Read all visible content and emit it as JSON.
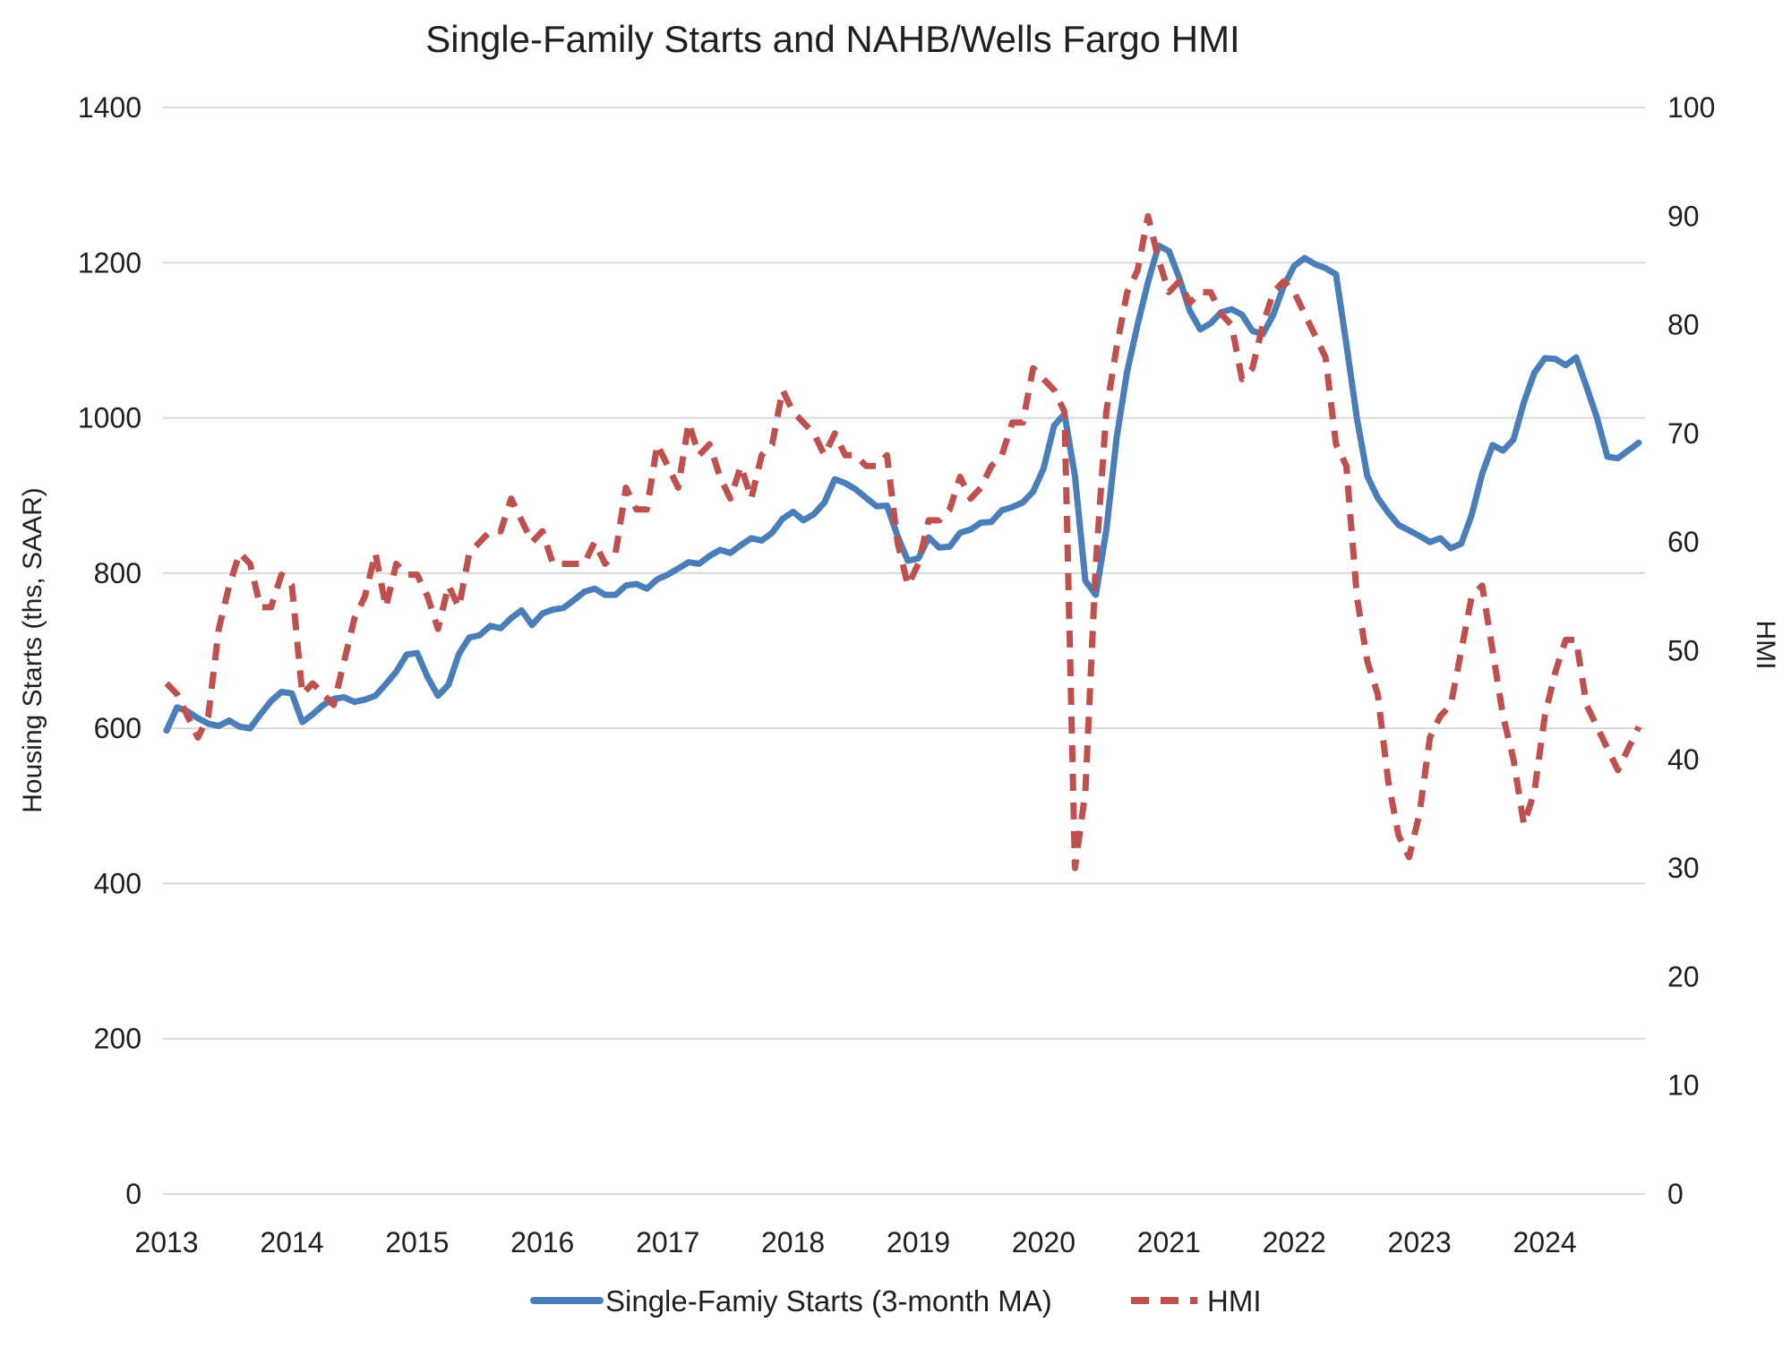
{
  "title": "Single-Family Starts and NAHB/Wells Fargo HMI",
  "left_axis": {
    "title": "Housing Starts (ths, SAAR)",
    "ticks": [
      "1400",
      "1200",
      "1000",
      "800",
      "600",
      "400",
      "200",
      "0"
    ],
    "min": 0,
    "max": 1400
  },
  "right_axis": {
    "title": "HMI",
    "ticks": [
      "100",
      "90",
      "80",
      "70",
      "60",
      "50",
      "40",
      "30",
      "20",
      "10",
      "0"
    ],
    "min": 0,
    "max": 100
  },
  "x_axis": {
    "year_labels": [
      "2013",
      "2014",
      "2015",
      "2016",
      "2017",
      "2018",
      "2019",
      "2020",
      "2021",
      "2022",
      "2023",
      "2024"
    ]
  },
  "legend": {
    "starts_label": "Single-Famiy Starts (3-month MA)",
    "hmi_label": "HMI"
  },
  "colors": {
    "starts_line": "#4a7eba",
    "hmi_line": "#c0504d",
    "gridline": "#d9d9d9",
    "text": "#1f1f1f",
    "background": "#ffffff"
  },
  "chart_data": {
    "type": "line",
    "title": "Single-Family Starts and NAHB/Wells Fargo HMI",
    "frequency": "monthly",
    "x_start": "2013-01",
    "x_end": "2024-10",
    "x_tick_labels": [
      "2013",
      "2014",
      "2015",
      "2016",
      "2017",
      "2018",
      "2019",
      "2020",
      "2021",
      "2022",
      "2023",
      "2024"
    ],
    "left_ylabel": "Housing Starts (ths, SAAR)",
    "right_ylabel": "HMI",
    "left_ylim": [
      0,
      1400
    ],
    "right_ylim": [
      0,
      100
    ],
    "grid": true,
    "legend_position": "bottom",
    "series": [
      {
        "name": "Single-Famiy Starts (3-month MA)",
        "axis": "left",
        "style": "solid",
        "color": "#4a7eba",
        "values": [
          597,
          627,
          622,
          613,
          606,
          603,
          610,
          602,
          600,
          618,
          635,
          647,
          645,
          608,
          618,
          630,
          638,
          640,
          634,
          637,
          642,
          657,
          673,
          695,
          697,
          666,
          642,
          656,
          696,
          717,
          720,
          732,
          729,
          742,
          752,
          733,
          748,
          753,
          755,
          765,
          776,
          780,
          772,
          772,
          784,
          786,
          780,
          792,
          798,
          806,
          814,
          812,
          822,
          830,
          826,
          836,
          845,
          842,
          852,
          870,
          879,
          868,
          876,
          891,
          921,
          916,
          908,
          897,
          886,
          887,
          848,
          816,
          819,
          846,
          833,
          834,
          852,
          856,
          865,
          866,
          881,
          885,
          891,
          905,
          935,
          990,
          1005,
          925,
          790,
          772,
          855,
          975,
          1060,
          1120,
          1175,
          1222,
          1215,
          1180,
          1138,
          1114,
          1122,
          1136,
          1140,
          1133,
          1112,
          1108,
          1133,
          1170,
          1196,
          1206,
          1198,
          1193,
          1185,
          1095,
          1000,
          925,
          897,
          878,
          862,
          855,
          848,
          840,
          845,
          832,
          838,
          875,
          928,
          965,
          958,
          972,
          1020,
          1058,
          1077,
          1076,
          1068,
          1078,
          1040,
          1000,
          950,
          948,
          958,
          968
        ]
      },
      {
        "name": "HMI",
        "axis": "right",
        "style": "dashed",
        "color": "#c0504d",
        "values": [
          47,
          46,
          44,
          42,
          44,
          52,
          56,
          59,
          58,
          54,
          54,
          57,
          56,
          46,
          47,
          46,
          45,
          49,
          53,
          55,
          59,
          54,
          58,
          57,
          57,
          55,
          52,
          56,
          54,
          59,
          60,
          61,
          61,
          64,
          62,
          60,
          61,
          58,
          58,
          58,
          58,
          60,
          58,
          59,
          65,
          63,
          63,
          69,
          67,
          65,
          71,
          68,
          69,
          66,
          64,
          67,
          64,
          68,
          69,
          74,
          72,
          71,
          70,
          68,
          70,
          68,
          68,
          67,
          67,
          68,
          60,
          56,
          58,
          62,
          62,
          63,
          66,
          64,
          65,
          67,
          68,
          71,
          71,
          76,
          75,
          74,
          72,
          30,
          37,
          58,
          72,
          78,
          83,
          85,
          90,
          86,
          83,
          84,
          82,
          83,
          83,
          81,
          80,
          75,
          76,
          80,
          83,
          84,
          83,
          81,
          79,
          77,
          69,
          67,
          55,
          49,
          46,
          38,
          33,
          31,
          35,
          42,
          44,
          45,
          50,
          55,
          56,
          50,
          44,
          40,
          34,
          37,
          44,
          48,
          51,
          51,
          45,
          43,
          41,
          39,
          41,
          43
        ]
      }
    ]
  }
}
